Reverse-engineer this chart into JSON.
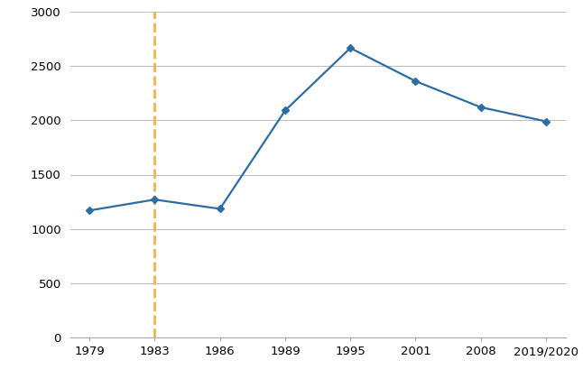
{
  "x_labels": [
    "1979",
    "1983",
    "1986",
    "1989",
    "1995",
    "2001",
    "2008",
    "2019/2020"
  ],
  "x_positions": [
    0,
    1,
    2,
    3,
    4,
    5,
    6,
    7
  ],
  "y_values": [
    1170,
    1270,
    1185,
    2090,
    2665,
    2360,
    2120,
    1990
  ],
  "line_color": "#2E6CA4",
  "marker_style": "D",
  "marker_size": 4.5,
  "dashed_line_x": 1,
  "dashed_line_color": "#E8B84B",
  "ylim": [
    0,
    3000
  ],
  "yticks": [
    0,
    500,
    1000,
    1500,
    2000,
    2500,
    3000
  ],
  "grid_color": "#C0C0C0",
  "background_color": "#FFFFFF",
  "line_width": 1.6,
  "tick_label_fontsize": 9.5,
  "spine_color": "#AAAAAA"
}
